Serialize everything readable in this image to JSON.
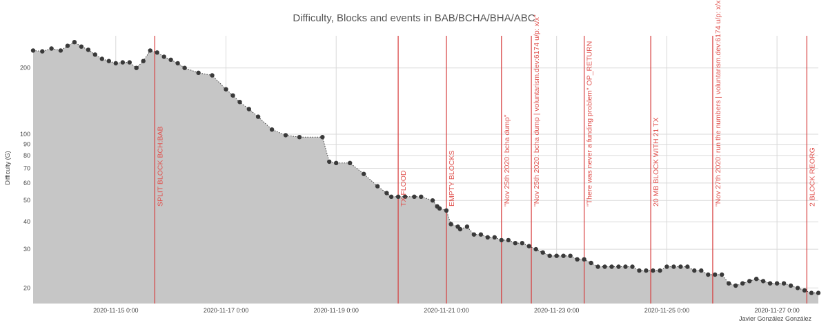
{
  "chart_data": {
    "type": "area",
    "title": "Difficulty, Blocks and events in BAB/BCHA/BHA/ABC",
    "xlabel": "",
    "ylabel": "Difficulty (G)",
    "yscale": "log",
    "xlim": [
      "2020-11-13T12:00",
      "2020-11-27T18:00"
    ],
    "ylim": [
      17,
      280
    ],
    "x_ticks": [
      "2020-11-15 0:00",
      "2020-11-17 0:00",
      "2020-11-19 0:00",
      "2020-11-21 0:00",
      "2020-11-23 0:00",
      "2020-11-25 0:00",
      "2020-11-27 0:00"
    ],
    "y_ticks": [
      20,
      30,
      40,
      50,
      60,
      70,
      80,
      90,
      100,
      200
    ],
    "y_tick_labels": [
      "20",
      "30",
      "40",
      "50",
      "60",
      "70",
      "80",
      "90",
      "100",
      "200"
    ],
    "grid": true,
    "colors": {
      "area": "#c6c6c6",
      "points": "#3a3a3a",
      "events": "#d63a3a",
      "grid": "#d9d9d9"
    },
    "series": [
      {
        "x": [
          "2020-11-13T12:00",
          "2020-11-13T16:00",
          "2020-11-13T20:00",
          "2020-11-14T00:00",
          "2020-11-14T03:00",
          "2020-11-14T06:00",
          "2020-11-14T09:00",
          "2020-11-14T12:00",
          "2020-11-14T15:00",
          "2020-11-14T18:00",
          "2020-11-14T21:00",
          "2020-11-15T00:00",
          "2020-11-15T03:00",
          "2020-11-15T06:00",
          "2020-11-15T09:00",
          "2020-11-15T12:00",
          "2020-11-15T15:00",
          "2020-11-15T18:00",
          "2020-11-15T21:00",
          "2020-11-16T00:00",
          "2020-11-16T03:00",
          "2020-11-16T06:00",
          "2020-11-16T12:00",
          "2020-11-16T18:00",
          "2020-11-17T00:00",
          "2020-11-17T03:00",
          "2020-11-17T06:00",
          "2020-11-17T10:00",
          "2020-11-17T14:00",
          "2020-11-17T20:00",
          "2020-11-18T02:00",
          "2020-11-18T08:00",
          "2020-11-18T18:00",
          "2020-11-18T21:00",
          "2020-11-19T00:00",
          "2020-11-19T06:00",
          "2020-11-19T12:00",
          "2020-11-19T18:00",
          "2020-11-19T22:00",
          "2020-11-20T00:00",
          "2020-11-20T03:00",
          "2020-11-20T06:00",
          "2020-11-20T10:00",
          "2020-11-20T13:00",
          "2020-11-20T18:00",
          "2020-11-20T20:00",
          "2020-11-20T21:00",
          "2020-11-21T00:00",
          "2020-11-21T02:00",
          "2020-11-21T05:00",
          "2020-11-21T06:00",
          "2020-11-21T09:00",
          "2020-11-21T12:00",
          "2020-11-21T15:00",
          "2020-11-21T18:00",
          "2020-11-21T21:00",
          "2020-11-22T00:00",
          "2020-11-22T03:00",
          "2020-11-22T06:00",
          "2020-11-22T09:00",
          "2020-11-22T12:00",
          "2020-11-22T15:00",
          "2020-11-22T18:00",
          "2020-11-22T21:00",
          "2020-11-23T00:00",
          "2020-11-23T03:00",
          "2020-11-23T06:00",
          "2020-11-23T09:00",
          "2020-11-23T12:00",
          "2020-11-23T15:00",
          "2020-11-23T18:00",
          "2020-11-23T21:00",
          "2020-11-24T00:00",
          "2020-11-24T03:00",
          "2020-11-24T06:00",
          "2020-11-24T09:00",
          "2020-11-24T12:00",
          "2020-11-24T15:00",
          "2020-11-24T18:00",
          "2020-11-24T21:00",
          "2020-11-25T00:00",
          "2020-11-25T03:00",
          "2020-11-25T06:00",
          "2020-11-25T09:00",
          "2020-11-25T12:00",
          "2020-11-25T15:00",
          "2020-11-25T18:00",
          "2020-11-25T21:00",
          "2020-11-26T00:00",
          "2020-11-26T03:00",
          "2020-11-26T06:00",
          "2020-11-26T09:00",
          "2020-11-26T12:00",
          "2020-11-26T15:00",
          "2020-11-26T18:00",
          "2020-11-26T21:00",
          "2020-11-27T00:00",
          "2020-11-27T03:00",
          "2020-11-27T06:00",
          "2020-11-27T09:00",
          "2020-11-27T12:00",
          "2020-11-27T15:00",
          "2020-11-27T18:00"
        ],
        "values": [
          240,
          238,
          245,
          240,
          252,
          262,
          250,
          242,
          230,
          220,
          215,
          210,
          212,
          212,
          200,
          215,
          240,
          235,
          225,
          218,
          210,
          200,
          190,
          185,
          160,
          150,
          140,
          130,
          120,
          105,
          99,
          97,
          97,
          75,
          74,
          74,
          66,
          58,
          54,
          52,
          52,
          52,
          52,
          52,
          50,
          47,
          46,
          45,
          39,
          38,
          37,
          38,
          35,
          35,
          34,
          34,
          33,
          33,
          32,
          32,
          31,
          30,
          29,
          28,
          28,
          28,
          28,
          27,
          27,
          26,
          25,
          25,
          25,
          25,
          25,
          25,
          24,
          24,
          24,
          24,
          25,
          25,
          25,
          25,
          24,
          24,
          23,
          23,
          23,
          21,
          20.5,
          21,
          21.5,
          22,
          21.5,
          21,
          21,
          21,
          20.5,
          20,
          19.5,
          19,
          19
        ]
      }
    ],
    "events": [
      {
        "x": "2020-11-15T17:00",
        "label": "SPLIT BLOCK BCH:BAB"
      },
      {
        "x": "2020-11-20T03:00",
        "label": "TX FLOOD"
      },
      {
        "x": "2020-11-21T00:00",
        "label": "EMPTY BLOCKS"
      },
      {
        "x": "2020-11-22T00:00",
        "label": "\"Nov 25th 2020: bcha dump\""
      },
      {
        "x": "2020-11-22T13:00",
        "label": "\"Nov 25th 2020: bcha dump | voluntarism.dev:6174 u/p: x/x\""
      },
      {
        "x": "2020-11-23T12:00",
        "label": "\"There was never a funding problem\" OP_RETURN"
      },
      {
        "x": "2020-11-24T17:00",
        "label": "20 MB BLOCK WITH 21 TX"
      },
      {
        "x": "2020-11-25T20:00",
        "label": "\"Nov 27th 2020: run the numbers | voluntarism.dev:6174 u/p: x/x\""
      },
      {
        "x": "2020-11-27T13:00",
        "label": "2 BLOCK REORG"
      }
    ],
    "credit": "Javier González González"
  }
}
